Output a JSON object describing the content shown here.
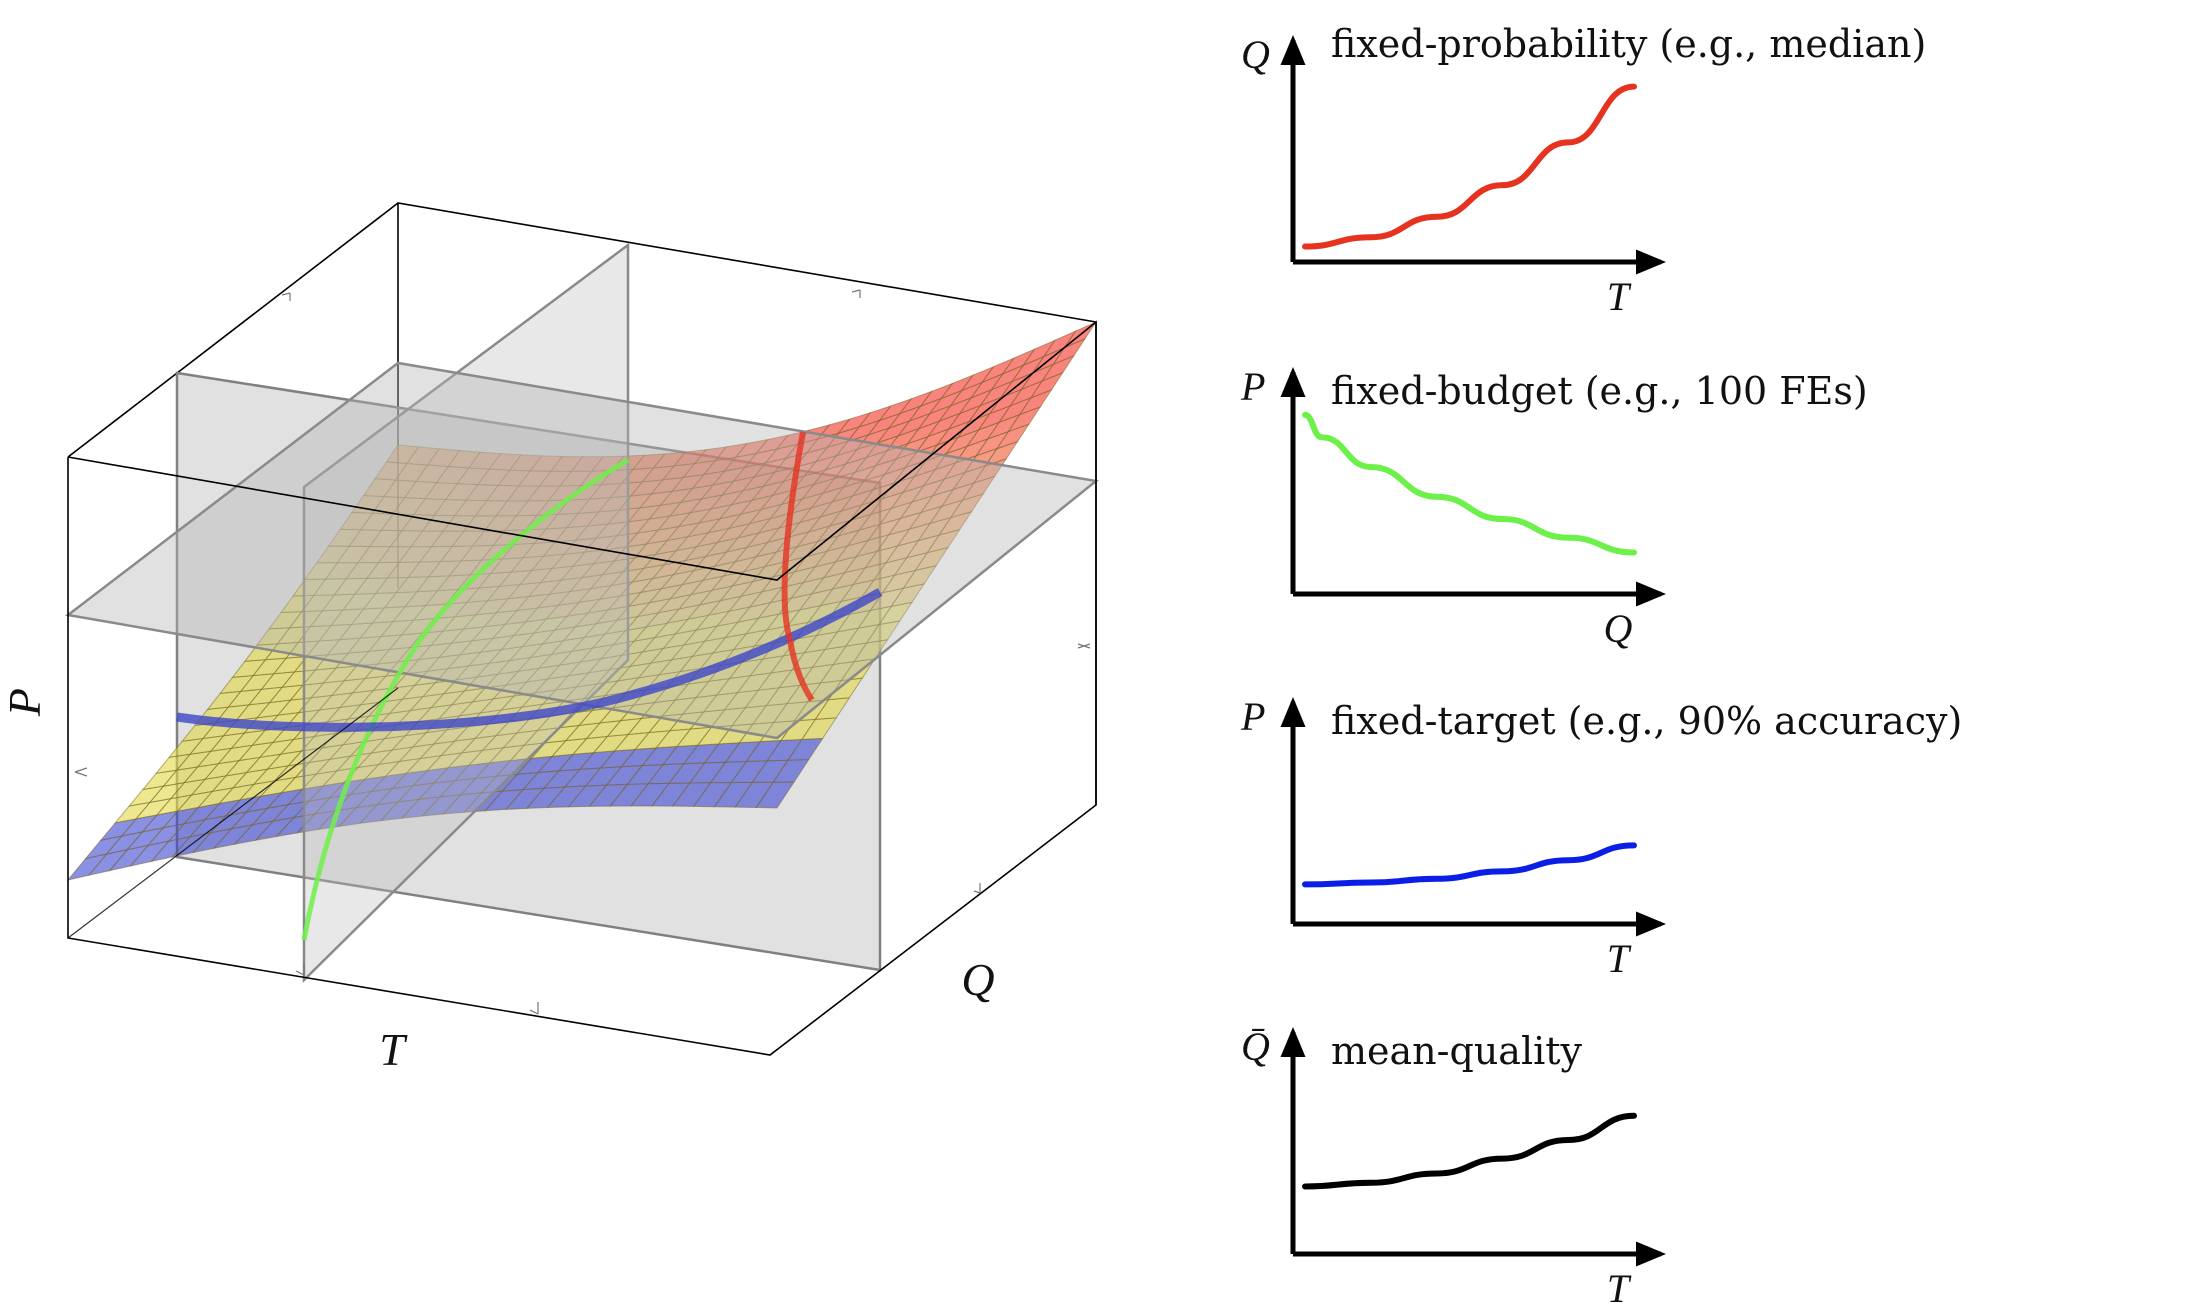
{
  "surface_plot": {
    "axis_labels": {
      "p": "P",
      "t": "T",
      "q": "Q"
    },
    "curve_colors": {
      "fixed_probability": "#e53320",
      "fixed_budget": "#6ef04a",
      "fixed_target": "#2233cc"
    },
    "plane_color": "#9a9a9a"
  },
  "panels": [
    {
      "title": "fixed-probability (e.g., median)",
      "ylabel": "Q",
      "xlabel": "T",
      "color": "#e53320"
    },
    {
      "title": "fixed-budget (e.g., 100 FEs)",
      "ylabel": "P",
      "xlabel": "Q",
      "color": "#6ef04a"
    },
    {
      "title": "fixed-target (e.g., 90% accuracy)",
      "ylabel": "P",
      "xlabel": "T",
      "color": "#0a1ee6"
    },
    {
      "title": "mean-quality",
      "ylabel": "Q̄",
      "xlabel": "T",
      "color": "#000000"
    }
  ],
  "chart_data": {
    "type": "line",
    "series": [
      {
        "name": "fixed-probability (e.g., median)",
        "x": [
          0,
          0.2,
          0.4,
          0.6,
          0.8,
          1.0
        ],
        "values": [
          0.04,
          0.09,
          0.2,
          0.37,
          0.6,
          0.9
        ]
      },
      {
        "name": "fixed-budget (e.g., 100 FEs)",
        "x": [
          0,
          0.05,
          0.2,
          0.4,
          0.6,
          0.8,
          1.0
        ],
        "values": [
          0.92,
          0.8,
          0.64,
          0.48,
          0.36,
          0.26,
          0.18
        ]
      },
      {
        "name": "fixed-target (e.g., 90% accuracy)",
        "x": [
          0,
          0.2,
          0.4,
          0.6,
          0.8,
          1.0
        ],
        "values": [
          0.17,
          0.18,
          0.2,
          0.24,
          0.3,
          0.38
        ]
      },
      {
        "name": "mean-quality",
        "x": [
          0,
          0.2,
          0.4,
          0.6,
          0.8,
          1.0
        ],
        "values": [
          0.32,
          0.34,
          0.39,
          0.47,
          0.57,
          0.7
        ]
      }
    ]
  }
}
